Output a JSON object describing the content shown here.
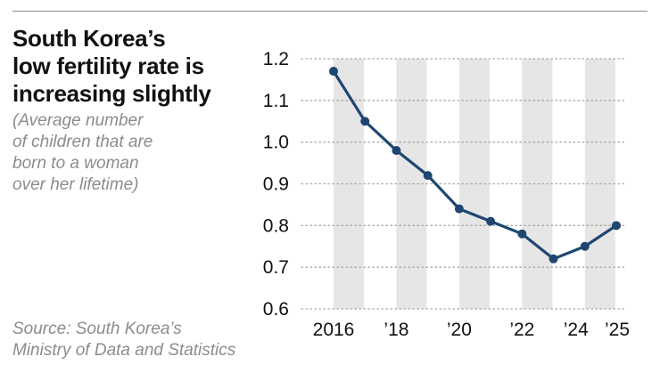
{
  "title": "South Korea’s\nlow fertility rate is\nincreasing slightly",
  "subtitle": "(Average number\nof children that are\nborn to a woman\nover her lifetime)",
  "source": "Source: South Korea’s\nMinistry of Data and Statistics",
  "colors": {
    "line": "#1f4670",
    "band": "#e6e6e6",
    "grid": "#a8a8a8",
    "muted_text": "#8c8c8c"
  },
  "chart_data": {
    "type": "line",
    "x": [
      2016,
      2017,
      2018,
      2019,
      2020,
      2021,
      2022,
      2023,
      2024,
      2025
    ],
    "series": [
      {
        "values": [
          1.17,
          1.05,
          0.98,
          0.92,
          0.84,
          0.81,
          0.78,
          0.72,
          0.75,
          0.8
        ]
      }
    ],
    "ylim": [
      0.6,
      1.2
    ],
    "yticks": [
      0.6,
      0.7,
      0.8,
      0.9,
      1.0,
      1.1,
      1.2
    ],
    "ytick_labels": [
      "0.6",
      "0.7",
      "0.8",
      "0.9",
      "1.0",
      "1.1",
      "1.2"
    ],
    "xticks": [
      {
        "x": 2016,
        "label": "2016"
      },
      {
        "x": 2018,
        "label": "’18"
      },
      {
        "x": 2020,
        "label": "’20"
      },
      {
        "x": 2022,
        "label": "’22"
      },
      {
        "x": 2024,
        "label": "’24"
      },
      {
        "x": 2025,
        "label": "’25"
      }
    ],
    "shaded_bands_at": [
      2016,
      2018,
      2020,
      2022,
      2024
    ],
    "grid": "horizontal-dotted"
  }
}
